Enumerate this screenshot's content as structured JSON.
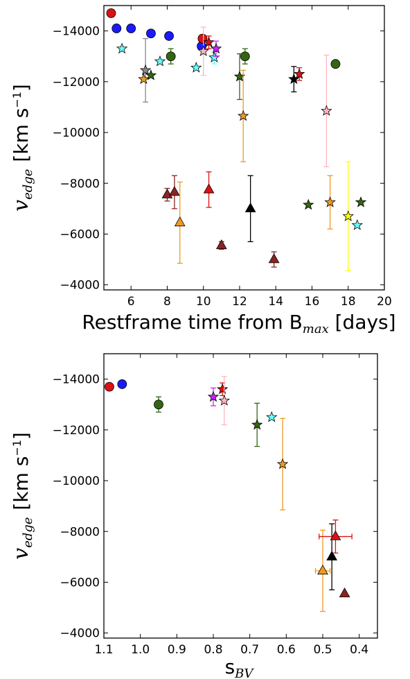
{
  "chart_data": [
    {
      "type": "scatter",
      "xlabel": "Restframe time from B",
      "xlabel_sub": "max",
      "xlabel_suffix": " [days]",
      "ylabel_main": "v",
      "ylabel_sub": "edge",
      "ylabel_units": "[km s",
      "ylabel_exp": "−1",
      "ylabel_close": "]",
      "xlim": [
        4.5,
        20
      ],
      "ylim": [
        -3800,
        -15000
      ],
      "xticks": [
        "6",
        "8",
        "10",
        "12",
        "14",
        "16",
        "18",
        "20"
      ],
      "yticks": [
        "−14000",
        "−12000",
        "−10000",
        "−8000",
        "−6000",
        "−4000"
      ],
      "grid": false,
      "points": [
        {
          "x": 4.9,
          "y": -14700,
          "marker": "circle",
          "color": "#dd1111"
        },
        {
          "x": 5.2,
          "y": -14100,
          "marker": "circle",
          "color": "#1a1aff",
          "err": 120
        },
        {
          "x": 6.0,
          "y": -14100,
          "marker": "circle",
          "color": "#1a1aff"
        },
        {
          "x": 7.1,
          "y": -13900,
          "marker": "circle",
          "color": "#1a1aff"
        },
        {
          "x": 8.1,
          "y": -13800,
          "marker": "circle",
          "color": "#1a1aff"
        },
        {
          "x": 9.9,
          "y": -13400,
          "marker": "circle",
          "color": "#1a1aff",
          "err": 120
        },
        {
          "x": 9.95,
          "y": -13700,
          "marker": "circle",
          "color": "#dd1111",
          "err": 100
        },
        {
          "x": 8.2,
          "y": -13000,
          "marker": "circle",
          "color": "#336611",
          "err": 300
        },
        {
          "x": 12.3,
          "y": -13000,
          "marker": "circle",
          "color": "#336611",
          "err": 300
        },
        {
          "x": 17.3,
          "y": -12700,
          "marker": "circle",
          "color": "#336611"
        },
        {
          "x": 5.5,
          "y": -13300,
          "marker": "star",
          "color": "#66ffff"
        },
        {
          "x": 7.6,
          "y": -12800,
          "marker": "star",
          "color": "#66ffff"
        },
        {
          "x": 9.6,
          "y": -12550,
          "marker": "star",
          "color": "#66ffff"
        },
        {
          "x": 10.6,
          "y": -12950,
          "marker": "star",
          "color": "#66ffff",
          "err": 250
        },
        {
          "x": 18.5,
          "y": -6350,
          "marker": "star",
          "color": "#66ffff"
        },
        {
          "x": 6.8,
          "y": -12450,
          "marker": "star",
          "color": "#888888",
          "err": 1250
        },
        {
          "x": 6.7,
          "y": -12100,
          "marker": "star",
          "color": "#ee9922"
        },
        {
          "x": 7.1,
          "y": -12250,
          "marker": "star",
          "color": "#336611"
        },
        {
          "x": 12.0,
          "y": -12200,
          "marker": "star",
          "color": "#336611",
          "err": 900
        },
        {
          "x": 12.2,
          "y": -10650,
          "marker": "star",
          "color": "#ee9922",
          "err": 1800
        },
        {
          "x": 10.0,
          "y": -13200,
          "marker": "star",
          "color": "#ffb6c1",
          "err": 950
        },
        {
          "x": 10.3,
          "y": -13550,
          "marker": "star",
          "color": "#dd1111",
          "err": 250
        },
        {
          "x": 10.7,
          "y": -13300,
          "marker": "star",
          "color": "#cc22ff",
          "err": 300
        },
        {
          "x": 15.0,
          "y": -12100,
          "marker": "star",
          "color": "#000000",
          "err": 500
        },
        {
          "x": 15.3,
          "y": -12300,
          "marker": "star",
          "color": "#dd1111",
          "err": 250
        },
        {
          "x": 16.8,
          "y": -10850,
          "marker": "star",
          "color": "#ffb6c1",
          "err": 2200
        },
        {
          "x": 15.8,
          "y": -7150,
          "marker": "star",
          "color": "#336611"
        },
        {
          "x": 17.0,
          "y": -7250,
          "marker": "star",
          "color": "#ee9922",
          "err": 1050
        },
        {
          "x": 18.7,
          "y": -7250,
          "marker": "star",
          "color": "#336611"
        },
        {
          "x": 18.0,
          "y": -6700,
          "marker": "star",
          "color": "#ffff00",
          "err": 2150
        },
        {
          "x": 8.0,
          "y": -7550,
          "marker": "triangle",
          "color": "#8b2323",
          "err": 250
        },
        {
          "x": 8.4,
          "y": -7650,
          "marker": "triangle",
          "color": "#8b2323",
          "err": 650
        },
        {
          "x": 8.7,
          "y": -6450,
          "marker": "triangle",
          "color": "#ee9922",
          "err": 1600
        },
        {
          "x": 10.3,
          "y": -7750,
          "marker": "triangle",
          "color": "#dd1111",
          "err": 700
        },
        {
          "x": 11.0,
          "y": -5550,
          "marker": "triangle",
          "color": "#8b2323",
          "err": 150
        },
        {
          "x": 12.6,
          "y": -7000,
          "marker": "triangle",
          "color": "#000000",
          "err": 1300
        },
        {
          "x": 13.9,
          "y": -5000,
          "marker": "triangle",
          "color": "#8b2323",
          "err": 300
        }
      ]
    },
    {
      "type": "scatter",
      "xlabel": "s",
      "xlabel_sub": "BV",
      "xlabel_suffix": "",
      "ylabel_main": "v",
      "ylabel_sub": "edge",
      "ylabel_units": "[km s",
      "ylabel_exp": "−1",
      "ylabel_close": "]",
      "xlim": [
        1.1,
        0.35
      ],
      "ylim": [
        -3800,
        -15000
      ],
      "xticks": [
        "1.1",
        "1.0",
        "0.9",
        "0.8",
        "0.7",
        "0.6",
        "0.5",
        "0.4"
      ],
      "yticks": [
        "−14000",
        "−12000",
        "−10000",
        "−8000",
        "−6000",
        "−4000"
      ],
      "grid": false,
      "points": [
        {
          "x": 1.085,
          "y": -13700,
          "marker": "circle",
          "color": "#dd1111"
        },
        {
          "x": 1.05,
          "y": -13800,
          "marker": "circle",
          "color": "#1a1aff"
        },
        {
          "x": 0.95,
          "y": -13000,
          "marker": "circle",
          "color": "#336611",
          "err": 300
        },
        {
          "x": 0.8,
          "y": -13300,
          "marker": "star",
          "color": "#cc22ff",
          "err": 350
        },
        {
          "x": 0.775,
          "y": -13600,
          "marker": "star",
          "color": "#dd1111",
          "err": 250
        },
        {
          "x": 0.77,
          "y": -13150,
          "marker": "star",
          "color": "#ffb6c1",
          "err": 950
        },
        {
          "x": 0.68,
          "y": -12200,
          "marker": "star",
          "color": "#336611",
          "err": 850
        },
        {
          "x": 0.64,
          "y": -12500,
          "marker": "star",
          "color": "#66ffff"
        },
        {
          "x": 0.61,
          "y": -10650,
          "marker": "star",
          "color": "#ee9922",
          "err": 1800
        },
        {
          "x": 0.5,
          "y": -6450,
          "marker": "triangle",
          "color": "#ee9922",
          "err": 1600,
          "xerr": 0.02
        },
        {
          "x": 0.475,
          "y": -7000,
          "marker": "triangle",
          "color": "#000000",
          "err": 1300
        },
        {
          "x": 0.465,
          "y": -7800,
          "marker": "triangle",
          "color": "#dd1111",
          "err": 650,
          "xerr": 0.045
        },
        {
          "x": 0.44,
          "y": -5550,
          "marker": "triangle",
          "color": "#8b2323"
        }
      ]
    }
  ]
}
